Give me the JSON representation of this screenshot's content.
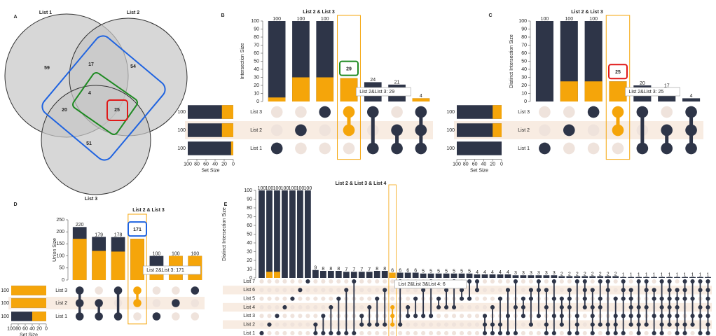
{
  "chart_data": [
    {
      "type": "venn",
      "panel": "A",
      "sets": [
        "List 1",
        "List 2",
        "List 3"
      ],
      "regions": [
        {
          "sets": [
            0
          ],
          "value": 59
        },
        {
          "sets": [
            1
          ],
          "value": 54
        },
        {
          "sets": [
            2
          ],
          "value": 51
        },
        {
          "sets": [
            0,
            1
          ],
          "value": 17
        },
        {
          "sets": [
            0,
            2
          ],
          "value": 20
        },
        {
          "sets": [
            1,
            2
          ],
          "value": 25
        },
        {
          "sets": [
            0,
            1,
            2
          ],
          "value": 4
        }
      ],
      "color": "#c6c6c6",
      "highlight_colors": [
        "#1f63e0",
        "#1e8a22",
        "#e01919"
      ]
    },
    {
      "type": "upset",
      "panel": "B",
      "title": "List 2 & List 3",
      "y_label": "Intersection Size",
      "values": [
        100,
        100,
        100,
        29,
        24,
        21,
        4
      ],
      "highlight": [
        5,
        30,
        30,
        29,
        0,
        0,
        4
      ],
      "sets": [
        {
          "name": "List 3",
          "size": 100,
          "highlight": 25
        },
        {
          "name": "List 2",
          "size": 100,
          "highlight": 25
        },
        {
          "name": "List 1",
          "size": 100,
          "highlight": 5
        }
      ],
      "members": [
        [
          2
        ],
        [
          1
        ],
        [
          0
        ],
        [
          0,
          1
        ],
        [
          0,
          2
        ],
        [
          1,
          2
        ],
        [
          0,
          1,
          2
        ]
      ],
      "selected": 3,
      "callout_color": "#1e8a22",
      "tooltip": "List 2&List 3: 29",
      "ylim": [
        0,
        100
      ],
      "yticks": [
        0,
        10,
        20,
        30,
        40,
        50,
        60,
        70,
        80,
        90,
        100
      ],
      "set_label": "Set Size",
      "set_xlim": [
        0,
        100
      ],
      "set_xticks": [
        0,
        20,
        40,
        60,
        80,
        100
      ],
      "color": "#2e3548",
      "highlight_color": "#f5a50a"
    },
    {
      "type": "upset",
      "panel": "C",
      "title": "List 2 & List 3",
      "y_label": "Distinct Intersection Size",
      "values": [
        100,
        100,
        100,
        25,
        20,
        17,
        4
      ],
      "highlight": [
        0,
        25,
        25,
        25,
        0,
        0,
        0
      ],
      "sets": [
        {
          "name": "List 3",
          "size": 100,
          "highlight": 20
        },
        {
          "name": "List 2",
          "size": 100,
          "highlight": 20
        },
        {
          "name": "List 1",
          "size": 100,
          "highlight": 0
        }
      ],
      "members": [
        [
          2
        ],
        [
          1
        ],
        [
          0
        ],
        [
          0,
          1
        ],
        [
          0,
          2
        ],
        [
          1,
          2
        ],
        [
          0,
          1,
          2
        ]
      ],
      "selected": 3,
      "callout_color": "#e01919",
      "tooltip": "List 2&List 3: 25",
      "ylim": [
        0,
        100
      ],
      "yticks": [
        0,
        10,
        20,
        30,
        40,
        50,
        60,
        70,
        80,
        90,
        100
      ],
      "set_label": "Set Size",
      "set_xlim": [
        0,
        100
      ],
      "set_xticks": [
        0,
        20,
        40,
        60,
        80,
        100
      ],
      "color": "#2e3548",
      "highlight_color": "#f5a50a"
    },
    {
      "type": "upset",
      "panel": "D",
      "title": "List 2 & List 3",
      "y_label": "Union Size",
      "values": [
        220,
        179,
        178,
        171,
        100,
        100,
        100
      ],
      "highlight": [
        171,
        121,
        118,
        171,
        50,
        100,
        100
      ],
      "sets": [
        {
          "name": "List 3",
          "size": 100,
          "highlight": 100
        },
        {
          "name": "List 2",
          "size": 100,
          "highlight": 100
        },
        {
          "name": "List 1",
          "size": 100,
          "highlight": 40
        }
      ],
      "members": [
        [
          0,
          1,
          2
        ],
        [
          1,
          2
        ],
        [
          0,
          2
        ],
        [
          0,
          1
        ],
        [
          2
        ],
        [
          1
        ],
        [
          0
        ]
      ],
      "selected": 3,
      "callout_color": "#1f63e0",
      "tooltip": "List 2&List 3: 171",
      "ylim": [
        0,
        250
      ],
      "yticks": [
        0,
        50,
        100,
        150,
        200,
        250
      ],
      "set_label": "Set Size",
      "set_xlim": [
        0,
        100
      ],
      "set_xticks": [
        0,
        20,
        40,
        60,
        80,
        100
      ],
      "color": "#2e3548",
      "highlight_color": "#f5a50a"
    },
    {
      "type": "upset",
      "panel": "E",
      "title": "List 2 & List 3 & List 4",
      "y_label": "Distinct Intersection Size",
      "values": [
        100,
        100,
        100,
        100,
        100,
        100,
        100,
        9,
        8,
        8,
        8,
        7,
        7,
        7,
        7,
        8,
        8,
        6,
        6,
        6,
        6,
        5,
        5,
        5,
        5,
        5,
        5,
        5,
        4,
        4,
        4,
        4,
        4,
        3,
        3,
        3,
        3,
        3,
        3,
        2,
        2,
        2,
        2,
        2,
        2,
        2,
        2,
        1,
        1,
        1,
        1,
        1,
        1,
        1,
        1,
        1,
        1,
        1,
        1
      ],
      "highlight": [
        0,
        7,
        7,
        0,
        0,
        0,
        0,
        0,
        0,
        0,
        0,
        0,
        0,
        0,
        0,
        0,
        0,
        6,
        0,
        0,
        0,
        0,
        0,
        0,
        0,
        0,
        0,
        0,
        0,
        0,
        0,
        0,
        0,
        0,
        0,
        0,
        0,
        0,
        0,
        0,
        0,
        0,
        0,
        0,
        0,
        0,
        0,
        0,
        0,
        0,
        0,
        0,
        0,
        0,
        0,
        0,
        0,
        0,
        0
      ],
      "sets": [
        {
          "name": "List 7"
        },
        {
          "name": "List 6"
        },
        {
          "name": "List 5"
        },
        {
          "name": "List 4"
        },
        {
          "name": "List 3"
        },
        {
          "name": "List 2"
        },
        {
          "name": "List 1"
        }
      ],
      "members": [
        [
          6
        ],
        [
          5
        ],
        [
          4
        ],
        [
          3
        ],
        [
          2
        ],
        [
          1
        ],
        [
          0
        ],
        [
          5,
          6
        ],
        [
          4,
          6
        ],
        [
          3,
          6
        ],
        [
          2,
          6
        ],
        [
          1,
          6
        ],
        [
          0,
          6
        ],
        [
          4,
          5
        ],
        [
          3,
          5
        ],
        [
          2,
          5
        ],
        [
          1,
          5
        ],
        [
          3,
          4,
          5
        ],
        [
          0,
          5
        ],
        [
          3,
          4
        ],
        [
          2,
          4
        ],
        [
          1,
          4
        ],
        [
          0,
          4
        ],
        [
          2,
          3
        ],
        [
          1,
          3
        ],
        [
          0,
          3
        ],
        [
          1,
          2
        ],
        [
          0,
          2
        ],
        [
          0,
          1
        ],
        [
          4,
          5,
          6
        ],
        [
          3,
          5,
          6
        ],
        [
          2,
          5,
          6
        ],
        [
          1,
          4,
          6
        ],
        [
          0,
          3,
          6
        ],
        [
          2,
          3,
          4
        ],
        [
          1,
          2,
          5
        ],
        [
          0,
          1,
          4
        ],
        [
          1,
          3,
          5,
          6
        ],
        [
          0,
          2,
          4,
          6
        ],
        [
          2,
          3,
          4,
          5
        ],
        [
          1,
          2,
          3,
          6
        ],
        [
          0,
          4,
          5,
          6
        ],
        [
          0,
          1,
          2,
          3
        ],
        [
          1,
          3,
          4,
          5,
          6
        ],
        [
          0,
          2,
          3,
          5
        ],
        [
          0,
          1,
          5,
          6
        ],
        [
          2,
          4,
          5,
          6
        ],
        [
          0,
          1,
          2,
          4,
          6
        ],
        [
          1,
          2,
          3,
          4,
          5
        ],
        [
          0,
          3,
          4,
          5,
          6
        ],
        [
          0,
          1,
          3,
          5
        ],
        [
          1,
          2,
          4,
          6
        ],
        [
          0,
          2,
          3,
          4,
          5,
          6
        ],
        [
          0,
          1,
          2,
          3,
          4,
          5
        ],
        [
          1,
          2,
          3,
          4,
          5,
          6
        ],
        [
          0,
          1,
          2,
          5,
          6
        ],
        [
          0,
          2,
          4,
          5
        ],
        [
          0,
          1,
          3,
          4,
          6
        ],
        [
          0,
          1,
          2,
          3,
          4,
          5,
          6
        ]
      ],
      "selected": 17,
      "tooltip": "List 2&List 3&List 4: 6",
      "ylim": [
        0,
        100
      ],
      "yticks": [
        0,
        10,
        20,
        30,
        40,
        50,
        60,
        70,
        80,
        90,
        100
      ],
      "color": "#2e3548",
      "highlight_color": "#f5a50a"
    }
  ]
}
